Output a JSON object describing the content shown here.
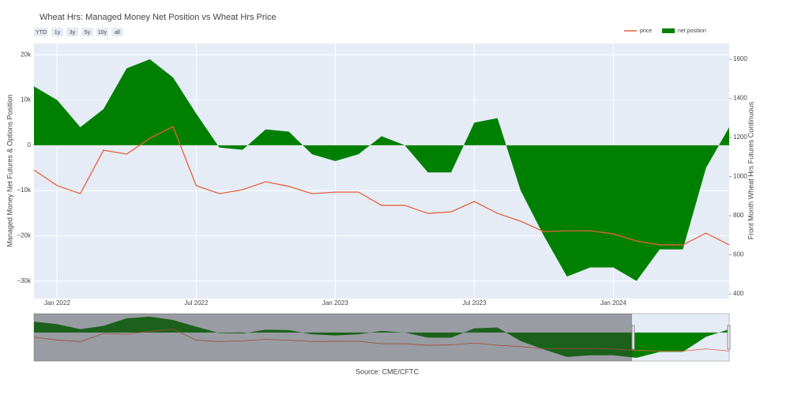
{
  "chart_data": {
    "type": "line",
    "title": "Wheat Hrs: Managed Money Net Position vs Wheat Hrs Price",
    "buttons": [
      "YTD",
      "1y",
      "3y",
      "5y",
      "10y",
      "all"
    ],
    "y_label": "Managed Money Net Futures & Options Position",
    "y2_label": "Front Month Wheat Hrs Futures Continuous",
    "source": "Source: CME/CFTC",
    "x": [
      "2021-12",
      "2022-01",
      "2022-02",
      "2022-03",
      "2022-04",
      "2022-05",
      "2022-06",
      "2022-07",
      "2022-08",
      "2022-09",
      "2022-10",
      "2022-11",
      "2022-12",
      "2023-01",
      "2023-02",
      "2023-03",
      "2023-04",
      "2023-05",
      "2023-06",
      "2023-07",
      "2023-08",
      "2023-09",
      "2023-10",
      "2023-11",
      "2023-12",
      "2024-01",
      "2024-02",
      "2024-03",
      "2024-04",
      "2024-05",
      "2024-06"
    ],
    "xticks": [
      {
        "value": "2022-01",
        "label": "Jan 2022"
      },
      {
        "value": "2022-07",
        "label": "Jul 2022"
      },
      {
        "value": "2023-01",
        "label": "Jan 2023"
      },
      {
        "value": "2023-07",
        "label": "Jul 2023"
      },
      {
        "value": "2024-01",
        "label": "Jan 2024"
      }
    ],
    "ylim": [
      -33900,
      22500
    ],
    "yticks": [
      {
        "value": 20000,
        "label": "20k"
      },
      {
        "value": 10000,
        "label": "10k"
      },
      0,
      {
        "value": -10000,
        "label": "−10k"
      },
      {
        "value": -20000,
        "label": "−20k"
      },
      {
        "value": -30000,
        "label": "−30k"
      }
    ],
    "y2lim": [
      376,
      1681
    ],
    "y2ticks": [
      400,
      600,
      800,
      1000,
      1200,
      1400,
      1600
    ],
    "grid": true,
    "legend": "top-right",
    "series": [
      {
        "name": "price",
        "type": "line",
        "axis": "y2",
        "color": "#e8603c",
        "values": [
          1034,
          954,
          913,
          1135,
          1115,
          1196,
          1256,
          954,
          913,
          933,
          974,
          950,
          913,
          921,
          921,
          853,
          853,
          812,
          820,
          873,
          812,
          772,
          719,
          723,
          723,
          707,
          671,
          651,
          651,
          711,
          651
        ]
      },
      {
        "name": "net position",
        "type": "area",
        "color": "#008000",
        "values": [
          13000,
          10000,
          4000,
          8000,
          17000,
          19000,
          15000,
          7000,
          -500,
          -1000,
          3500,
          3000,
          -2000,
          -3500,
          -2000,
          2000,
          0,
          -6000,
          -6000,
          5000,
          6000,
          -10000,
          -20000,
          -29000,
          -27000,
          -27000,
          -30000,
          -23000,
          -23000,
          -5000,
          4000
        ]
      }
    ]
  }
}
